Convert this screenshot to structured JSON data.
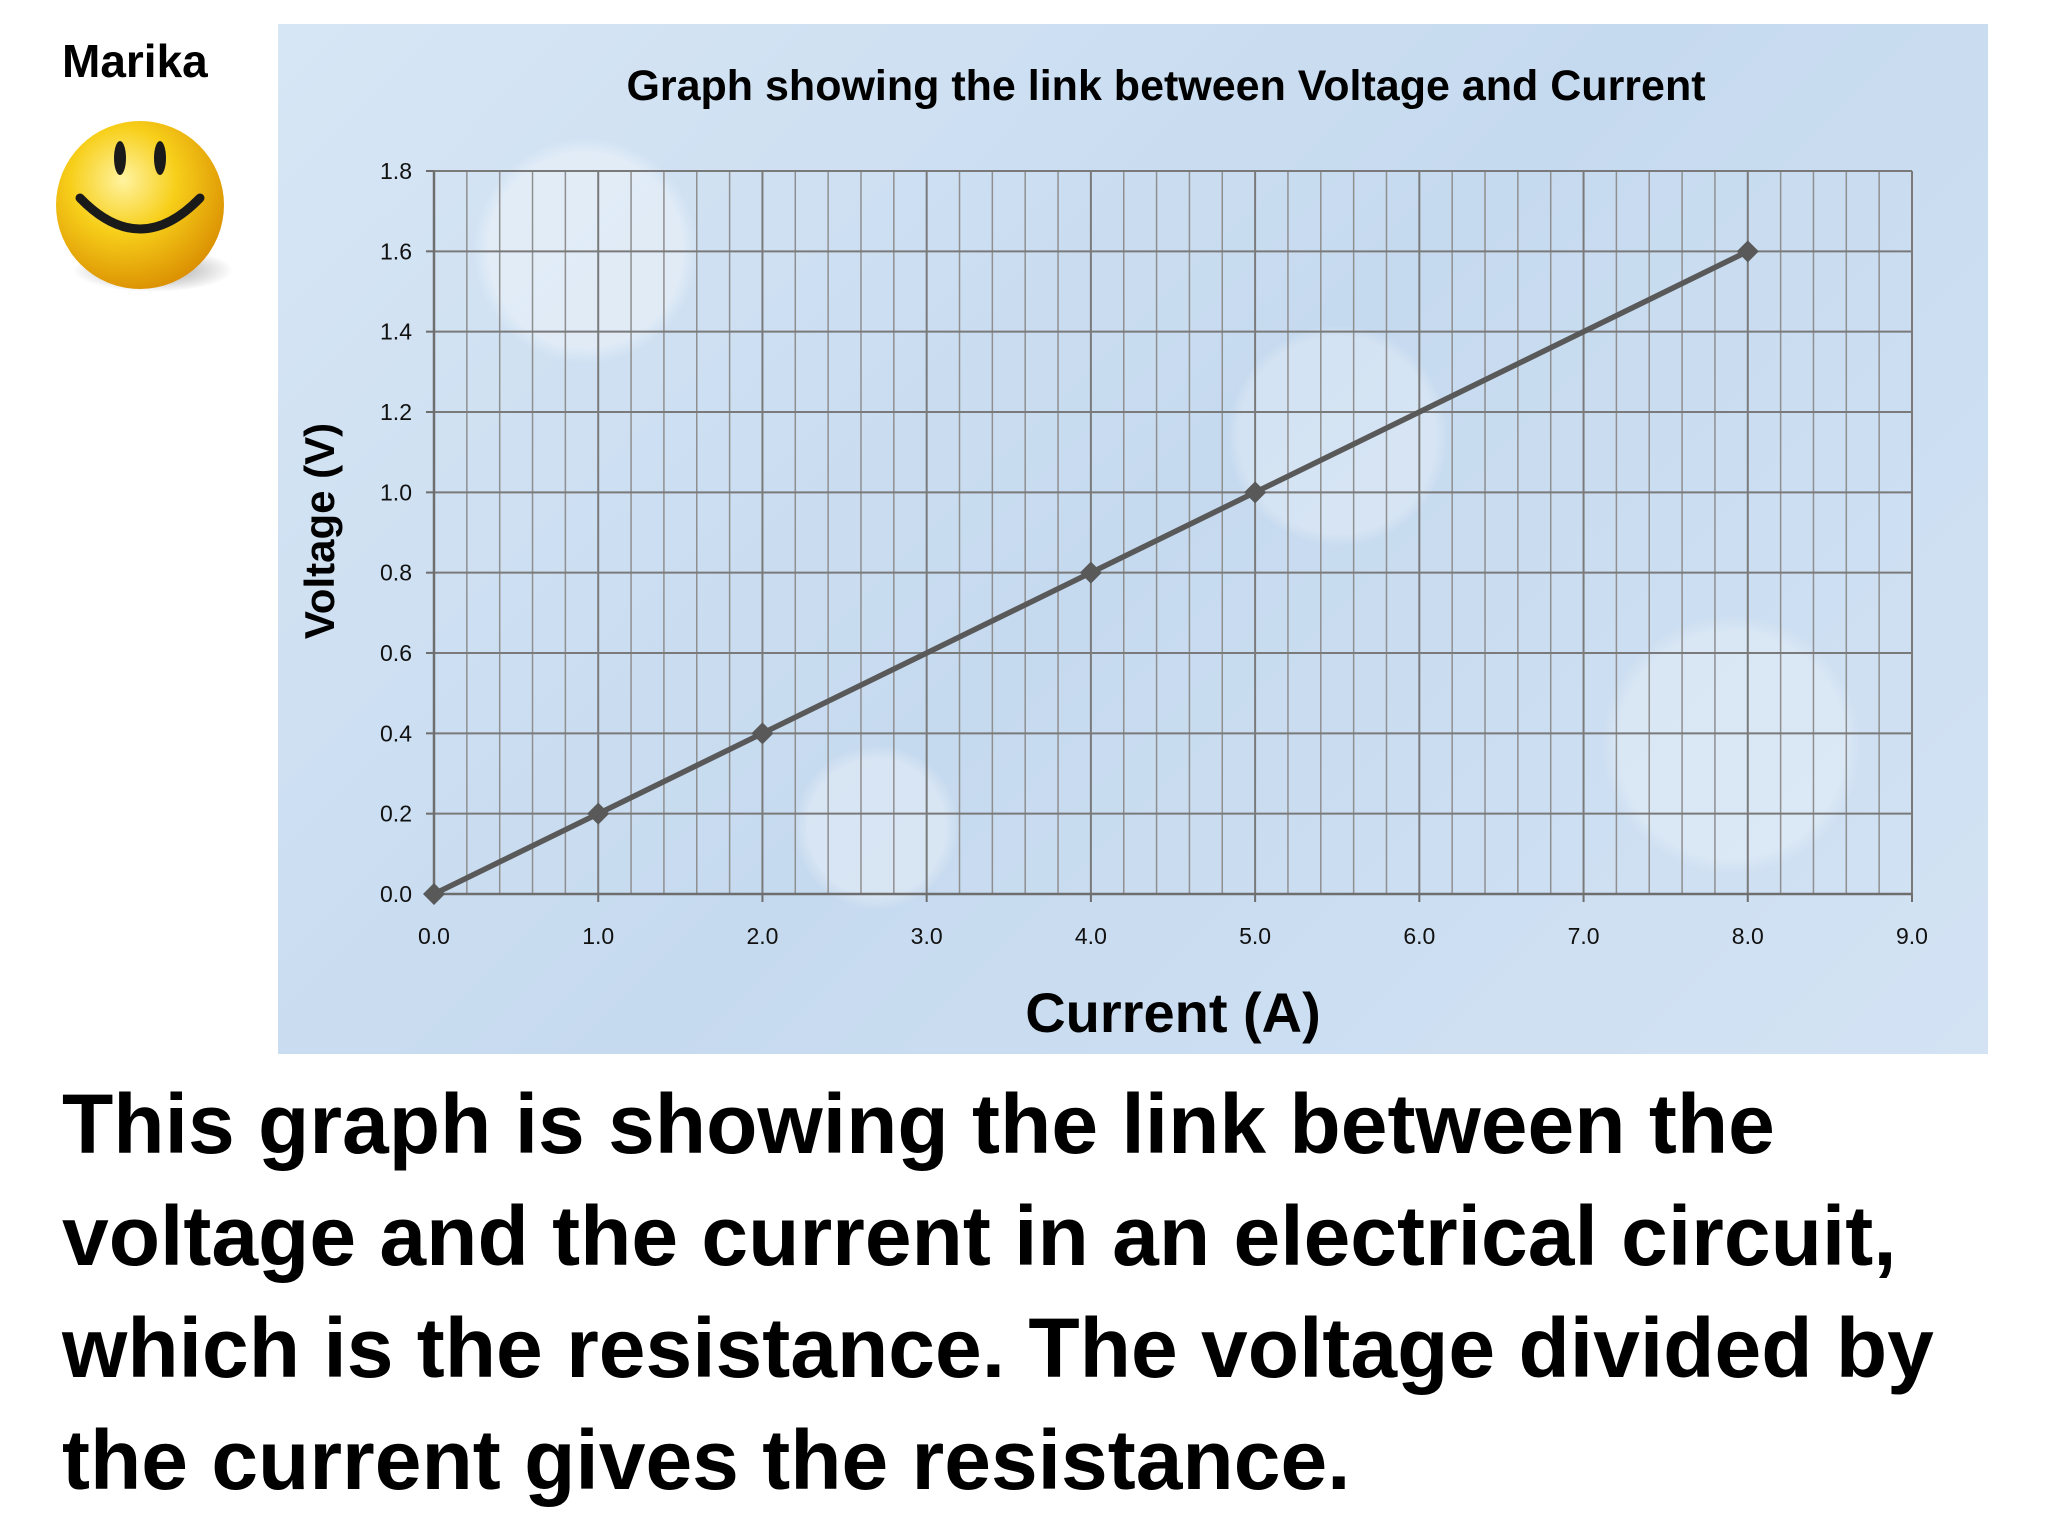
{
  "author": "Marika",
  "icons": {
    "smiley": "smiley-face-icon"
  },
  "chart_data": {
    "type": "line",
    "title": "Graph showing the link between Voltage and Current",
    "xlabel": "Current (A)",
    "ylabel": "Voltage (V)",
    "xlim": [
      0,
      9
    ],
    "ylim": [
      0,
      1.8
    ],
    "x_ticks": [
      "0.0",
      "1.0",
      "2.0",
      "3.0",
      "4.0",
      "5.0",
      "6.0",
      "7.0",
      "8.0",
      "9.0"
    ],
    "y_ticks": [
      "0.0",
      "0.2",
      "0.4",
      "0.6",
      "0.8",
      "1.0",
      "1.2",
      "1.4",
      "1.6",
      "1.8"
    ],
    "grid": true,
    "legend": "none",
    "series": [
      {
        "x": [
          0,
          1,
          2,
          4,
          5,
          8
        ],
        "y": [
          0,
          0.2,
          0.4,
          0.8,
          1.0,
          1.6
        ],
        "color": "#595959",
        "marker": "diamond"
      }
    ]
  },
  "description": "This graph is showing the link between the voltage and the current in an electrical circuit, which is the resistance. The voltage divided by the current gives the resistance."
}
